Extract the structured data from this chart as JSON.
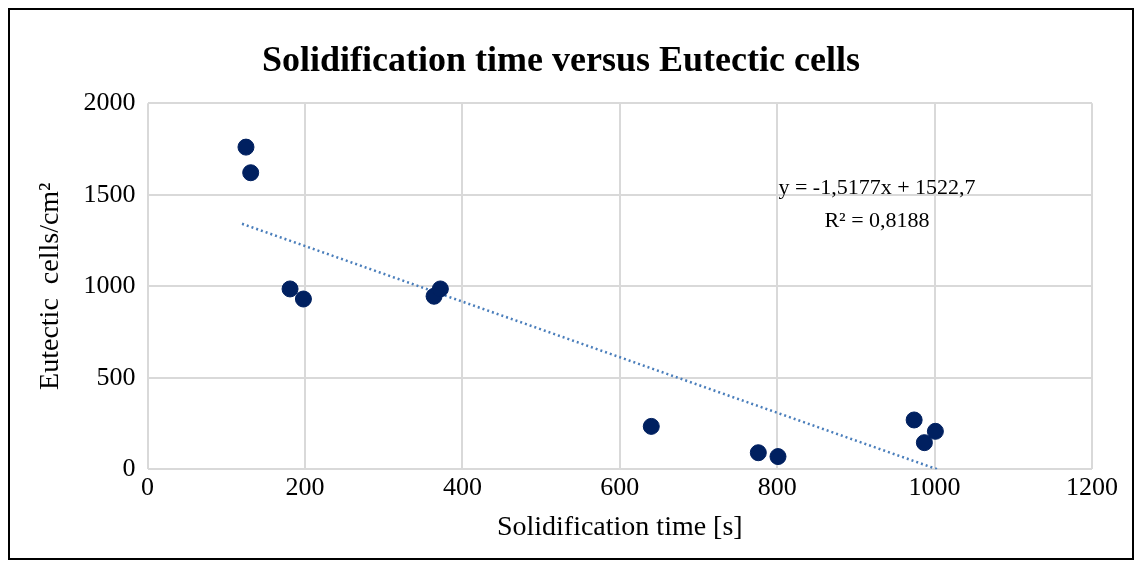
{
  "chart_data": {
    "type": "scatter",
    "title": "Solidification time versus Eutectic cells",
    "xlabel": "Solidification time [s]",
    "ylabel": "Eutectic  cells/cm²",
    "xlim": [
      0,
      1200
    ],
    "xticks": [
      0,
      200,
      400,
      600,
      800,
      1000,
      1200
    ],
    "ylim": [
      0,
      2000
    ],
    "yticks": [
      0,
      500,
      1000,
      1500,
      2000
    ],
    "grid": true,
    "legend": false,
    "series": [
      {
        "marker": "circle",
        "color": "#002060",
        "x": [
          125,
          131,
          181,
          198,
          364,
          372,
          640,
          776,
          801,
          974,
          987,
          1001
        ],
        "values": [
          1760,
          1620,
          985,
          930,
          945,
          985,
          234,
          90,
          69,
          269,
          145,
          207
        ]
      },
      {
        "type": "line",
        "marker": "none",
        "color": "#4a7ebb",
        "line_style": "dotted",
        "x": [
          120,
          1003
        ],
        "values": [
          1341,
          0
        ]
      }
    ],
    "annotations": [
      "y = -1,5177x + 1522,7",
      "R² = 0,8188"
    ]
  }
}
